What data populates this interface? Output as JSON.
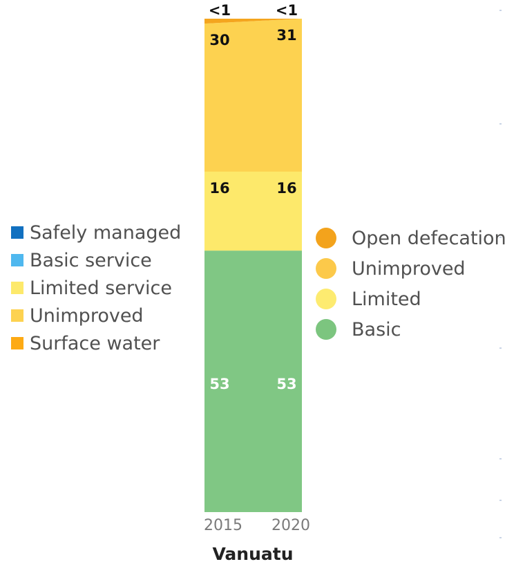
{
  "chart_data": {
    "type": "stacked-area",
    "categories": [
      "2015",
      "2020"
    ],
    "ylim": [
      0,
      100
    ],
    "series": [
      {
        "name": "Basic",
        "values": [
          53,
          53
        ],
        "labels": [
          "53",
          "53"
        ],
        "color": "#80c784",
        "label_color": "#ffffff"
      },
      {
        "name": "Limited",
        "values": [
          16,
          16
        ],
        "labels": [
          "16",
          "16"
        ],
        "color": "#fde96b",
        "label_color": "#111111"
      },
      {
        "name": "Unimproved",
        "values": [
          30,
          31
        ],
        "labels": [
          "30",
          "31"
        ],
        "color": "#fdd250",
        "label_color": "#111111"
      },
      {
        "name": "Open defecation",
        "values": [
          0.3,
          0.3
        ],
        "labels": [
          "<1",
          "<1"
        ],
        "color": "#f4a51e",
        "label_color": "#111111"
      }
    ],
    "country": "Vanuatu"
  },
  "legend_left": [
    {
      "label": "Safely managed",
      "color": "#1170c0"
    },
    {
      "label": "Basic service",
      "color": "#4fb8ef"
    },
    {
      "label": "Limited service",
      "color": "#fde96b"
    },
    {
      "label": "Unimproved",
      "color": "#fdd250"
    },
    {
      "label": "Surface water",
      "color": "#fdaa14"
    }
  ],
  "legend_right": [
    {
      "label": "Open defecation",
      "color": "#f3a31c"
    },
    {
      "label": "Unimproved",
      "color": "#fcc94a"
    },
    {
      "label": "Limited",
      "color": "#fdeb70"
    },
    {
      "label": "Basic",
      "color": "#7cc57f"
    }
  ]
}
